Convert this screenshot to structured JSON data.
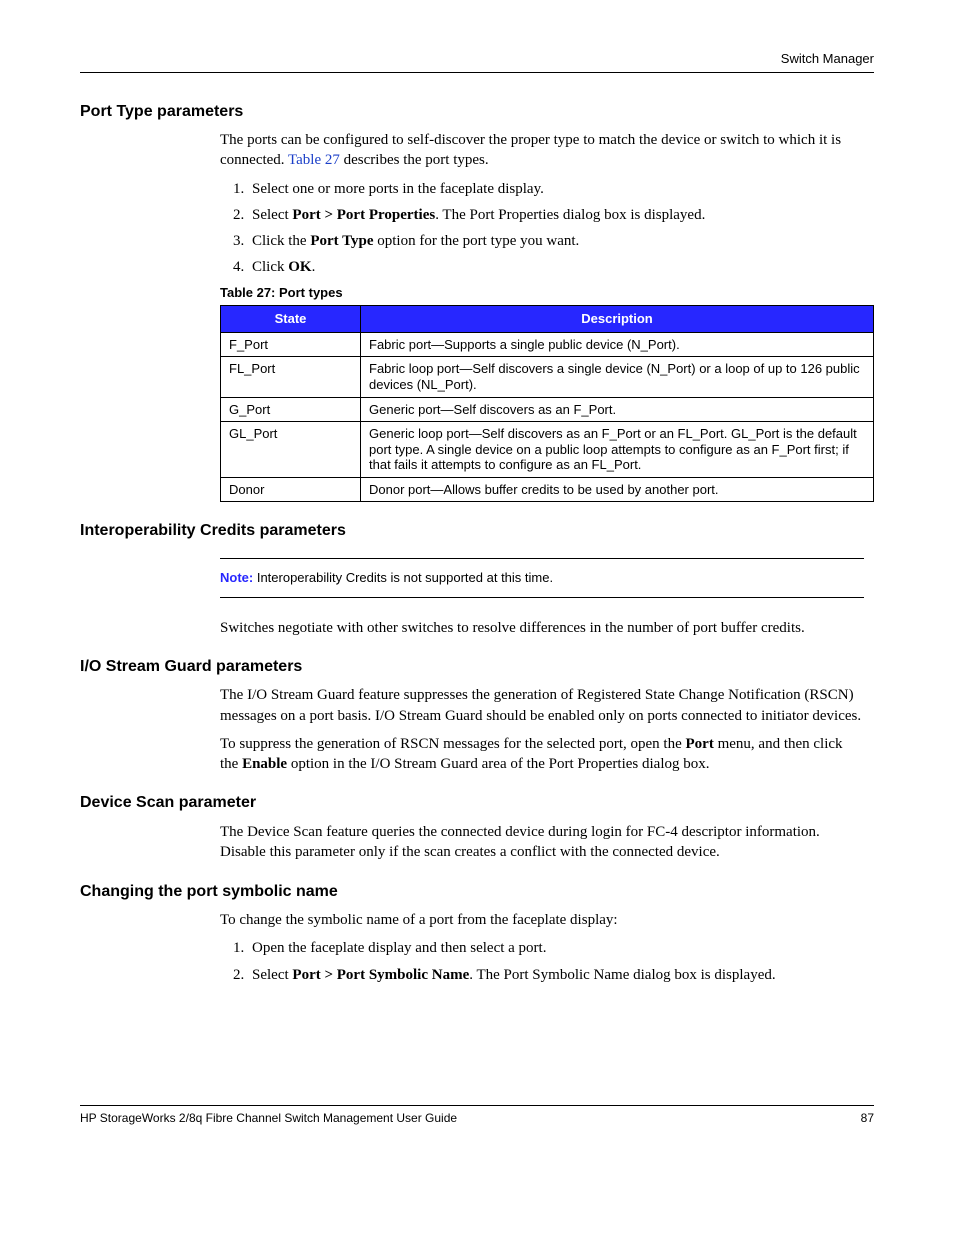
{
  "header": {
    "running_head": "Switch Manager"
  },
  "sections": {
    "port_type": {
      "heading": "Port Type parameters",
      "intro_part1": "The ports can be configured to self-discover the proper type to match the device or switch to which it is connected. ",
      "intro_link": "Table 27",
      "intro_part2": " describes the port types.",
      "steps": {
        "s1": "Select one or more ports in the faceplate display.",
        "s2_a": "Select ",
        "s2_bold": "Port > Port Properties",
        "s2_b": ". The Port Properties dialog box is displayed.",
        "s3_a": "Click the ",
        "s3_bold": "Port Type",
        "s3_b": " option for the port type you want.",
        "s4_a": "Click ",
        "s4_bold": "OK",
        "s4_b": "."
      },
      "table": {
        "caption": "Table 27:  Port types",
        "col_state": "State",
        "col_desc": "Description",
        "rows": {
          "r0s": "F_Port",
          "r0d": "Fabric port—Supports a single public device (N_Port).",
          "r1s": "FL_Port",
          "r1d": "Fabric loop port—Self discovers a single device (N_Port) or a loop of up to 126 public devices (NL_Port).",
          "r2s": "G_Port",
          "r2d": "Generic port—Self discovers as an F_Port.",
          "r3s": "GL_Port",
          "r3d": "Generic loop port—Self discovers as an F_Port or an FL_Port. GL_Port is the default port type. A single device on a public loop attempts to configure as an F_Port first; if that fails it attempts to configure as an FL_Port.",
          "r4s": "Donor",
          "r4d": "Donor port—Allows buffer credits to be used by another port."
        }
      }
    },
    "interop": {
      "heading": "Interoperability Credits parameters",
      "note_label": "Note:",
      "note_text": "  Interoperability Credits is not supported at this time.",
      "body": "Switches negotiate with other switches to resolve differences in the number of port buffer credits."
    },
    "io_stream": {
      "heading": "I/O Stream Guard parameters",
      "p1": "The I/O Stream Guard feature suppresses the generation of Registered State Change Notification (RSCN) messages on a port basis. I/O Stream Guard should be enabled only on ports connected to initiator devices.",
      "p2_a": "To suppress the generation of RSCN messages for the selected port, open the ",
      "p2_bold1": "Port",
      "p2_b": " menu, and then click the ",
      "p2_bold2": "Enable",
      "p2_c": " option in the I/O Stream Guard area of the Port Properties dialog box."
    },
    "device_scan": {
      "heading": "Device Scan parameter",
      "body": "The Device Scan feature queries the connected device during login for FC-4 descriptor information. Disable this parameter only if the scan creates a conflict with the connected device."
    },
    "symbolic": {
      "heading": "Changing the port symbolic name",
      "intro": "To change the symbolic name of a port from the faceplate display:",
      "steps": {
        "s1": "Open the faceplate display and then select a port.",
        "s2_a": "Select ",
        "s2_bold": "Port > Port Symbolic Name",
        "s2_b": ". The Port Symbolic Name dialog box is displayed."
      }
    }
  },
  "footer": {
    "title": "HP StorageWorks 2/8q Fibre Channel Switch Management User Guide",
    "page": "87"
  },
  "colors": {
    "table_header_bg": "#2727ff",
    "link_color": "#1a3ec8",
    "note_label_color": "#2727ff"
  }
}
